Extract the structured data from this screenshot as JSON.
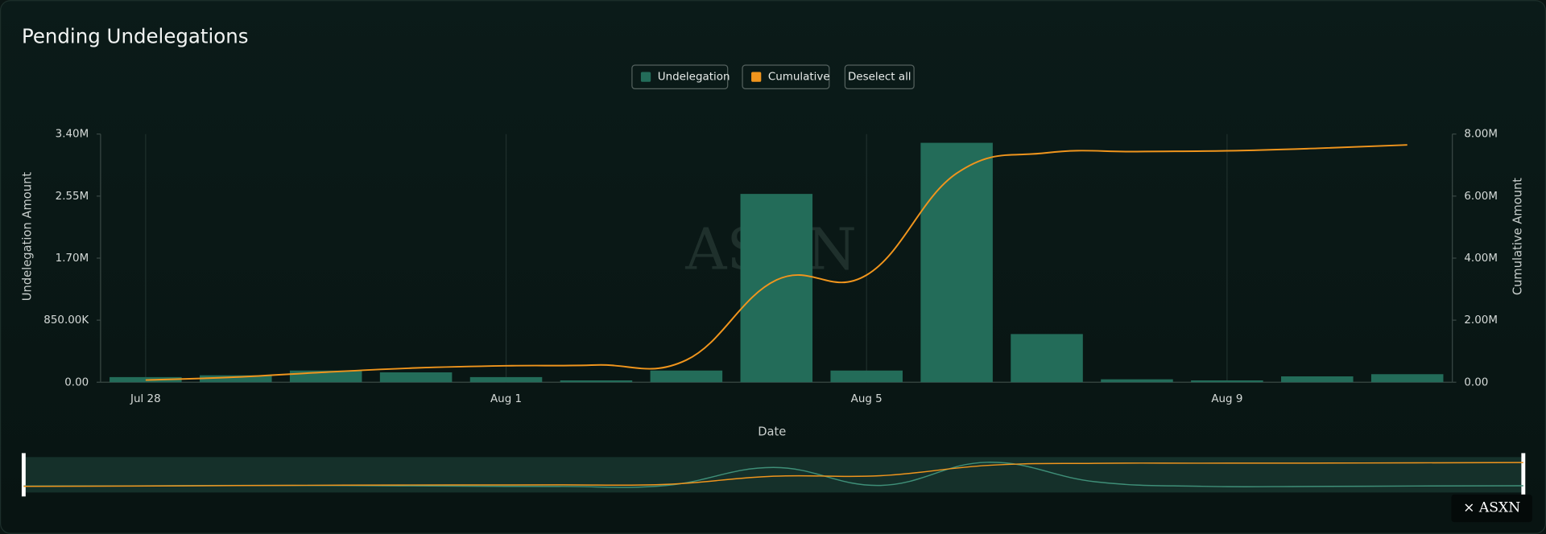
{
  "chart_data": {
    "type": "bar",
    "title": "Pending Undelegations",
    "x_label": "Date",
    "y_label": "Undelegation Amount",
    "y2_label": "Cumulative Amount",
    "deselect_label": "Deselect all",
    "watermark": "ASXN",
    "badge": "× ASXN",
    "categories": [
      "Jul 28",
      null,
      null,
      null,
      "Aug 1",
      null,
      null,
      null,
      "Aug 5",
      null,
      null,
      null,
      "Aug 9",
      null,
      null
    ],
    "series": [
      {
        "name": "Undelegation",
        "type": "bar",
        "color": "#236c59",
        "values": [
          70000,
          95000,
          160000,
          135000,
          70000,
          25000,
          160000,
          2580000,
          160000,
          3280000,
          660000,
          40000,
          25000,
          80000,
          110000
        ]
      },
      {
        "name": "Cumulative",
        "type": "line",
        "axis": "y2",
        "color": "#f0951d",
        "values": [
          70000,
          165000,
          325000,
          460000,
          530000,
          555000,
          715000,
          3295000,
          3455000,
          6735000,
          7395000,
          7435000,
          7460000,
          7540000,
          7650000
        ]
      }
    ],
    "ylim": [
      0,
      3400000
    ],
    "yticks": [
      {
        "value": 0,
        "label": "0.00"
      },
      {
        "value": 850000,
        "label": "850.00K"
      },
      {
        "value": 1700000,
        "label": "1.70M"
      },
      {
        "value": 2550000,
        "label": "2.55M"
      },
      {
        "value": 3400000,
        "label": "3.40M"
      }
    ],
    "y2lim": [
      0,
      8000000
    ],
    "y2ticks": [
      {
        "value": 0,
        "label": "0.00"
      },
      {
        "value": 2000000,
        "label": "2.00M"
      },
      {
        "value": 4000000,
        "label": "4.00M"
      },
      {
        "value": 6000000,
        "label": "6.00M"
      },
      {
        "value": 8000000,
        "label": "8.00M"
      }
    ],
    "grid": true
  }
}
